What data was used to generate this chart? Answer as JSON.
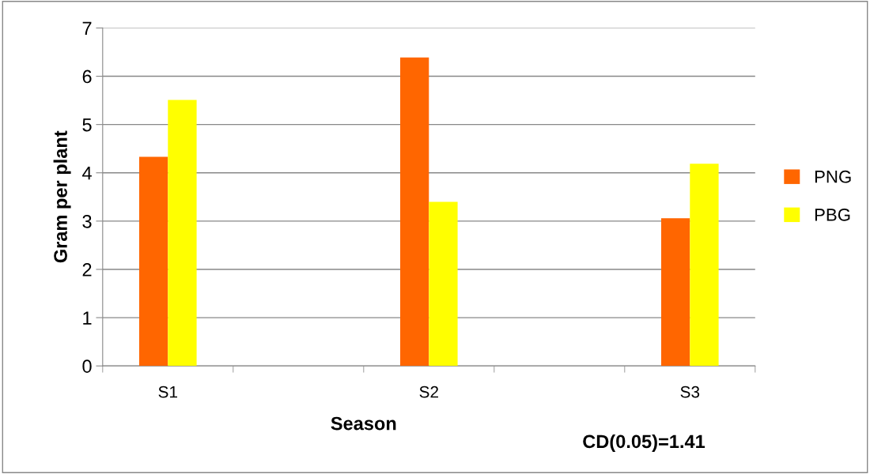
{
  "chart_data": {
    "type": "bar",
    "xlabel": "Season",
    "ylabel": "Gram per plant",
    "categories": [
      "S1",
      null,
      "S2",
      null,
      "S3"
    ],
    "series": [
      {
        "name": "PNG",
        "color": "#ff6600",
        "values": [
          4.33,
          null,
          6.39,
          null,
          3.06
        ]
      },
      {
        "name": "PBG",
        "color": "#ffff00",
        "values": [
          5.51,
          null,
          3.4,
          null,
          4.19
        ]
      }
    ],
    "ylim": [
      0,
      7
    ],
    "yticks": [
      0,
      1,
      2,
      3,
      4,
      5,
      6,
      7
    ],
    "grid": "y",
    "legend": "right",
    "annotations": [
      "CD(0.05)=1.41"
    ]
  }
}
